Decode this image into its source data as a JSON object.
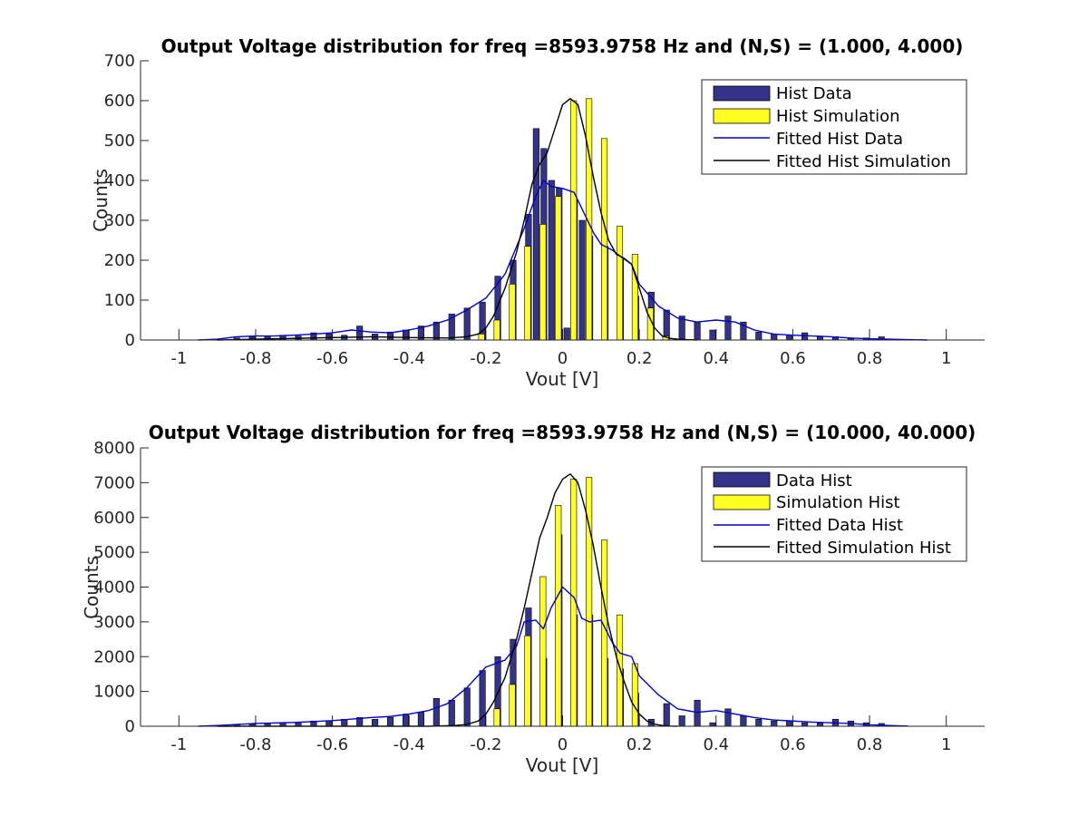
{
  "chart_data": [
    {
      "type": "bar",
      "title": "Output Voltage distribution for freq =8593.9758 Hz and (N,S) = (1.000, 4.000)",
      "xlabel": "Vout [V]",
      "ylabel": "Counts",
      "xlim": [
        -1.1,
        1.1
      ],
      "ylim": [
        0,
        700
      ],
      "xticks": [
        -1,
        -0.8,
        -0.6,
        -0.4,
        -0.2,
        0,
        0.2,
        0.4,
        0.6,
        0.8,
        1
      ],
      "xtick_labels": [
        "-1",
        "-0.8",
        "-0.6",
        "-0.4",
        "-0.2",
        "0",
        "0.2",
        "0.4",
        "0.6",
        "0.8",
        "1"
      ],
      "yticks": [
        0,
        100,
        200,
        300,
        400,
        500,
        600,
        700
      ],
      "ytick_labels": [
        "0",
        "100",
        "200",
        "300",
        "400",
        "500",
        "600",
        "700"
      ],
      "legend_position": "top-right",
      "bar_series": [
        {
          "name": "Hist Data",
          "color": "#33338a",
          "x": [
            -0.84,
            -0.8,
            -0.76,
            -0.72,
            -0.68,
            -0.64,
            -0.6,
            -0.56,
            -0.52,
            -0.48,
            -0.44,
            -0.4,
            -0.36,
            -0.32,
            -0.28,
            -0.24,
            -0.2,
            -0.16,
            -0.12,
            -0.08,
            -0.06,
            -0.04,
            -0.02,
            0.0,
            0.02,
            0.04,
            0.06,
            0.08,
            0.12,
            0.16,
            0.2,
            0.24,
            0.28,
            0.32,
            0.36,
            0.4,
            0.44,
            0.48,
            0.52,
            0.56,
            0.6,
            0.64,
            0.68,
            0.72,
            0.76,
            0.8,
            0.84
          ],
          "values": [
            5,
            8,
            10,
            12,
            10,
            18,
            15,
            12,
            35,
            15,
            20,
            25,
            35,
            45,
            65,
            80,
            95,
            160,
            200,
            315,
            530,
            480,
            400,
            380,
            30,
            350,
            300,
            260,
            235,
            205,
            110,
            120,
            75,
            60,
            45,
            25,
            60,
            45,
            20,
            15,
            12,
            18,
            10,
            8,
            5,
            5,
            8
          ]
        },
        {
          "name": "Hist Simulation",
          "color": "#ffff22",
          "x": [
            -0.22,
            -0.18,
            -0.14,
            -0.1,
            -0.06,
            -0.02,
            0.02,
            0.06,
            0.1,
            0.14,
            0.18,
            0.22,
            0.26
          ],
          "values": [
            15,
            50,
            140,
            235,
            290,
            360,
            600,
            605,
            505,
            285,
            215,
            80,
            10
          ]
        }
      ],
      "line_series": [
        {
          "name": "Fitted Hist Data",
          "color": "#0000cc",
          "x": [
            -0.95,
            -0.9,
            -0.85,
            -0.8,
            -0.75,
            -0.7,
            -0.65,
            -0.6,
            -0.55,
            -0.5,
            -0.45,
            -0.4,
            -0.35,
            -0.3,
            -0.25,
            -0.2,
            -0.15,
            -0.1,
            -0.07,
            -0.05,
            -0.03,
            0.0,
            0.03,
            0.05,
            0.08,
            0.1,
            0.13,
            0.15,
            0.18,
            0.2,
            0.25,
            0.3,
            0.35,
            0.4,
            0.45,
            0.5,
            0.55,
            0.6,
            0.65,
            0.7,
            0.75,
            0.8,
            0.85,
            0.9,
            0.95
          ],
          "values": [
            0,
            2,
            8,
            10,
            10,
            12,
            15,
            18,
            25,
            20,
            18,
            25,
            35,
            50,
            75,
            105,
            165,
            280,
            360,
            400,
            385,
            380,
            370,
            330,
            270,
            240,
            225,
            210,
            190,
            140,
            85,
            55,
            45,
            50,
            45,
            25,
            15,
            12,
            10,
            8,
            5,
            3,
            2,
            1,
            0
          ]
        },
        {
          "name": "Fitted Hist Simulation",
          "color": "#000000",
          "x": [
            -0.9,
            -0.8,
            -0.7,
            -0.6,
            -0.5,
            -0.4,
            -0.3,
            -0.25,
            -0.22,
            -0.2,
            -0.18,
            -0.15,
            -0.12,
            -0.1,
            -0.08,
            -0.06,
            -0.04,
            -0.02,
            0.0,
            0.02,
            0.04,
            0.06,
            0.08,
            0.1,
            0.12,
            0.14,
            0.16,
            0.18,
            0.2,
            0.22,
            0.24,
            0.26,
            0.28,
            0.3,
            0.35
          ],
          "values": [
            0,
            2,
            4,
            6,
            8,
            6,
            5,
            8,
            15,
            30,
            60,
            130,
            220,
            300,
            390,
            440,
            470,
            530,
            590,
            605,
            590,
            510,
            410,
            320,
            250,
            215,
            205,
            190,
            130,
            70,
            30,
            10,
            4,
            2,
            0
          ]
        }
      ]
    },
    {
      "type": "bar",
      "title": "Output Voltage distribution for freq =8593.9758 Hz and (N,S) = (10.000, 40.000)",
      "xlabel": "Vout [V]",
      "ylabel": "Counts",
      "xlim": [
        -1.1,
        1.1
      ],
      "ylim": [
        0,
        8000
      ],
      "xticks": [
        -1,
        -0.8,
        -0.6,
        -0.4,
        -0.2,
        0,
        0.2,
        0.4,
        0.6,
        0.8,
        1
      ],
      "xtick_labels": [
        "-1",
        "-0.8",
        "-0.6",
        "-0.4",
        "-0.2",
        "0",
        "0.2",
        "0.4",
        "0.6",
        "0.8",
        "1"
      ],
      "yticks": [
        0,
        1000,
        2000,
        3000,
        4000,
        5000,
        6000,
        7000,
        8000
      ],
      "ytick_labels": [
        "0",
        "1000",
        "2000",
        "3000",
        "4000",
        "5000",
        "6000",
        "7000",
        "8000"
      ],
      "legend_position": "top-right",
      "bar_series": [
        {
          "name": "Data Hist",
          "color": "#33338a",
          "x": [
            -0.84,
            -0.8,
            -0.76,
            -0.72,
            -0.68,
            -0.64,
            -0.6,
            -0.56,
            -0.52,
            -0.48,
            -0.44,
            -0.4,
            -0.36,
            -0.32,
            -0.28,
            -0.24,
            -0.2,
            -0.16,
            -0.12,
            -0.08,
            -0.04,
            0.0,
            0.04,
            0.08,
            0.12,
            0.16,
            0.2,
            0.24,
            0.28,
            0.32,
            0.36,
            0.4,
            0.44,
            0.48,
            0.52,
            0.56,
            0.6,
            0.64,
            0.68,
            0.72,
            0.76,
            0.8,
            0.84
          ],
          "values": [
            50,
            60,
            80,
            100,
            120,
            150,
            150,
            200,
            250,
            200,
            250,
            350,
            400,
            800,
            750,
            1100,
            1600,
            2000,
            2500,
            3400,
            1950,
            5500,
            3200,
            3200,
            1950,
            1650,
            950,
            200,
            650,
            300,
            750,
            100,
            500,
            300,
            200,
            150,
            150,
            100,
            100,
            200,
            150,
            100,
            80
          ]
        },
        {
          "name": "Simulation Hist",
          "color": "#ffff22",
          "x": [
            -0.18,
            -0.14,
            -0.1,
            -0.06,
            -0.02,
            0.02,
            0.06,
            0.1,
            0.14,
            0.18
          ],
          "values": [
            500,
            1200,
            2600,
            4300,
            6350,
            7100,
            7150,
            5350,
            3200,
            1800
          ]
        }
      ],
      "line_series": [
        {
          "name": "Fitted Data Hist",
          "color": "#0000cc",
          "x": [
            -0.95,
            -0.9,
            -0.85,
            -0.8,
            -0.7,
            -0.6,
            -0.5,
            -0.45,
            -0.4,
            -0.35,
            -0.3,
            -0.25,
            -0.2,
            -0.15,
            -0.12,
            -0.1,
            -0.07,
            -0.05,
            -0.03,
            0.0,
            0.03,
            0.05,
            0.07,
            0.1,
            0.13,
            0.15,
            0.18,
            0.2,
            0.25,
            0.3,
            0.35,
            0.4,
            0.45,
            0.5,
            0.55,
            0.6,
            0.65,
            0.7,
            0.75,
            0.8,
            0.85,
            0.9
          ],
          "values": [
            0,
            20,
            50,
            80,
            110,
            160,
            250,
            280,
            350,
            450,
            650,
            1100,
            1700,
            1900,
            2300,
            3000,
            3050,
            2800,
            3400,
            4000,
            3700,
            3100,
            3000,
            3050,
            2400,
            2100,
            2000,
            1450,
            900,
            500,
            400,
            450,
            350,
            250,
            180,
            150,
            120,
            100,
            80,
            40,
            20,
            5
          ]
        },
        {
          "name": "Fitted Simulation Hist",
          "color": "#000000",
          "x": [
            -0.9,
            -0.6,
            -0.35,
            -0.28,
            -0.25,
            -0.22,
            -0.2,
            -0.18,
            -0.15,
            -0.12,
            -0.1,
            -0.08,
            -0.06,
            -0.04,
            -0.02,
            0.0,
            0.02,
            0.04,
            0.06,
            0.08,
            0.1,
            0.12,
            0.14,
            0.16,
            0.18,
            0.2,
            0.22,
            0.24,
            0.26,
            0.28,
            0.3
          ],
          "values": [
            0,
            0,
            0,
            20,
            50,
            150,
            350,
            700,
            1400,
            2500,
            3400,
            4400,
            5400,
            6000,
            6700,
            7100,
            7250,
            7000,
            6200,
            5200,
            4000,
            2900,
            2000,
            1300,
            700,
            350,
            150,
            60,
            20,
            5,
            0
          ]
        }
      ]
    }
  ]
}
